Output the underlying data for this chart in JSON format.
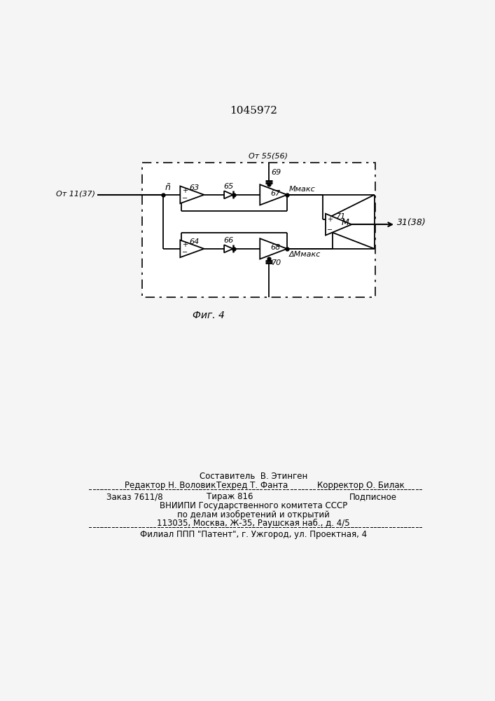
{
  "title": "1045972",
  "fig_label": "Фиг. 4",
  "bg_color": "#f0f0f0",
  "input_label_left": "От 11(37)",
  "input_label_top": "От 55(56)",
  "output_label": "31(38)",
  "node_label_n": "ñ",
  "block63": "63",
  "block64": "64",
  "block65": "65",
  "block66": "66",
  "block67": "67",
  "block68": "68",
  "block69": "69",
  "block70": "70",
  "block71": "71",
  "label_Mmaks": "Ммакс",
  "label_dMmaks": "ΔМмакс",
  "label_M_out": "М",
  "footer_composer": "Составитель  В. Этинген",
  "footer_editor": "Редактор Н. Воловик",
  "footer_techred": "Техред Т. Фанта",
  "footer_corrector": "Корректор О. Билак",
  "footer_order": "Заказ 7611/8",
  "footer_tirazh": "Тираж 816",
  "footer_podpisnoe": "Подписное",
  "footer_vniip1": "ВНИИПИ Государственного комитета СССР",
  "footer_vniip2": "по делам изобретений и открытий",
  "footer_addr": "113035, Москва, Ж-35, Раушская наб., д. 4/5",
  "footer_filial": "Филиал ППП \"Патент\", г. Ужгород, ул. Проектная, 4"
}
